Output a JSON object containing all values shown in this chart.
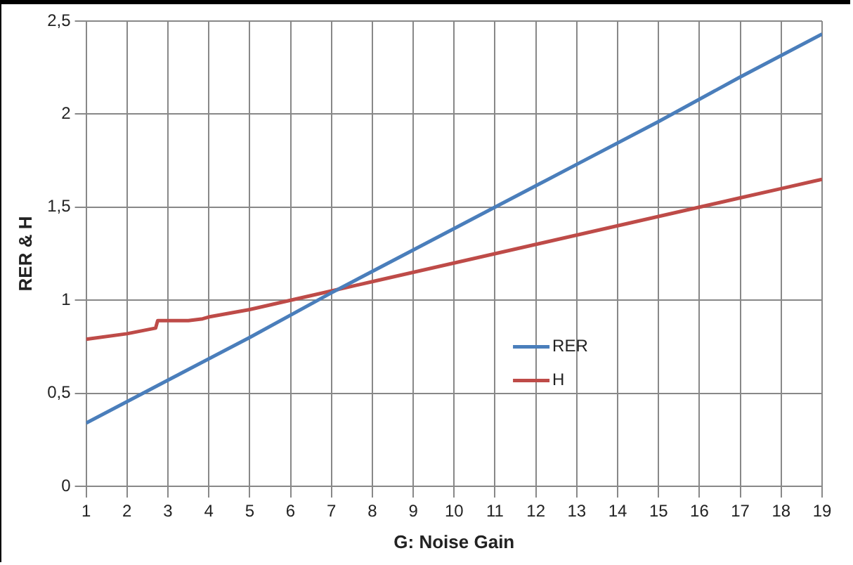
{
  "chart_data": {
    "type": "line",
    "xlabel": "G: Noise Gain",
    "ylabel": "RER & H",
    "series": [
      {
        "name": "RER",
        "color": "#4a7ebb",
        "x": [
          1,
          3,
          5,
          7,
          9,
          11,
          13,
          15,
          17,
          19
        ],
        "values": [
          0.34,
          0.57,
          0.8,
          1.04,
          1.27,
          1.5,
          1.73,
          1.96,
          2.2,
          2.43
        ]
      },
      {
        "name": "H",
        "color": "#be4b48",
        "x": [
          1,
          2,
          2.7,
          2.75,
          3,
          3.5,
          3.85,
          4,
          5,
          6,
          7,
          8,
          9,
          10,
          11,
          12,
          13,
          14,
          15,
          16,
          17,
          18,
          19
        ],
        "values": [
          0.79,
          0.82,
          0.85,
          0.89,
          0.89,
          0.89,
          0.9,
          0.91,
          0.95,
          1.0,
          1.05,
          1.1,
          1.15,
          1.2,
          1.25,
          1.3,
          1.35,
          1.4,
          1.45,
          1.5,
          1.55,
          1.6,
          1.65
        ]
      }
    ],
    "xlim": [
      1,
      19
    ],
    "xticks": [
      1,
      2,
      3,
      4,
      5,
      6,
      7,
      8,
      9,
      10,
      11,
      12,
      13,
      14,
      15,
      16,
      17,
      18,
      19
    ],
    "ylim": [
      0,
      2.5
    ],
    "yticks": [
      0,
      {
        "value": 0.5,
        "label": "0,5"
      },
      1,
      {
        "value": 1.5,
        "label": "1,5"
      },
      2,
      {
        "value": 2.5,
        "label": "2,5"
      }
    ],
    "grid": true,
    "legend": "center",
    "marker": "none",
    "line_style": "solid"
  }
}
